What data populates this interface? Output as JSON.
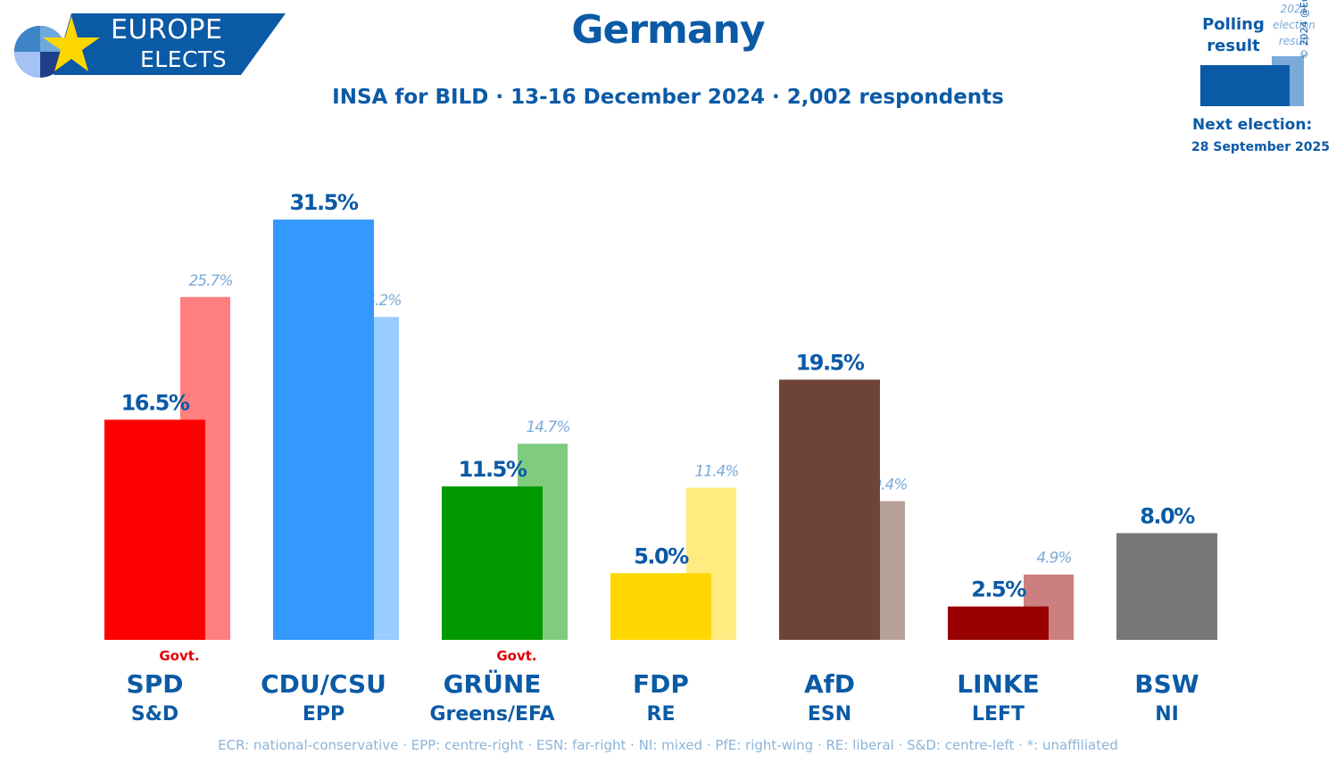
{
  "header": {
    "logo_line1": "EUROPE",
    "logo_line2": "ELECTS",
    "title": "Germany",
    "subtitle": "INSA for BILD · 13-16 December 2024 · 2,002 respondents"
  },
  "legend": {
    "polling_result": "Polling result",
    "previous_result": "2021 election result",
    "copyright": "© 2024 @EuropeElects",
    "next_election_label": "Next election:",
    "next_election_date": "28 September 2025",
    "colors": {
      "poll": "#0b5aa6",
      "previous": "#7aaad8"
    }
  },
  "chart_data": {
    "type": "bar",
    "title": "Germany",
    "ylim": [
      0,
      35
    ],
    "categories": [
      "SPD",
      "CDU/CSU",
      "GRÜNE",
      "FDP",
      "AfD",
      "LINKE",
      "BSW"
    ],
    "groups": [
      "S&D",
      "EPP",
      "Greens/EFA",
      "RE",
      "ESN",
      "LEFT",
      "NI"
    ],
    "govt": [
      "Govt.",
      "",
      "Govt.",
      "",
      "",
      "",
      ""
    ],
    "series": [
      {
        "name": "Polling result",
        "values": [
          16.5,
          31.5,
          11.5,
          5.0,
          19.5,
          2.5,
          8.0
        ],
        "labels": [
          "16.5%",
          "31.5%",
          "11.5%",
          "5.0%",
          "19.5%",
          "2.5%",
          "8.0%"
        ]
      },
      {
        "name": "2021 election result",
        "values": [
          25.7,
          24.2,
          14.7,
          11.4,
          10.4,
          4.9,
          null
        ],
        "labels": [
          "25.7%",
          "24.2%",
          "14.7%",
          "11.4%",
          "10.4%",
          "4.9%",
          ""
        ]
      }
    ],
    "colors": [
      "#ff0000",
      "#3399ff",
      "#009900",
      "#ffd700",
      "#6e4437",
      "#990000",
      "#777777"
    ],
    "prev_colors": [
      "#ff7f7f",
      "#99ccff",
      "#7fcc7f",
      "#ffeb80",
      "#b6a19b",
      "#cc7f7f",
      ""
    ]
  },
  "footer": {
    "text": "ECR: national-conservative · EPP: centre-right · ESN: far-right · NI: mixed · PfE: right-wing · RE: liberal · S&D: centre-left · *: unaffiliated"
  }
}
